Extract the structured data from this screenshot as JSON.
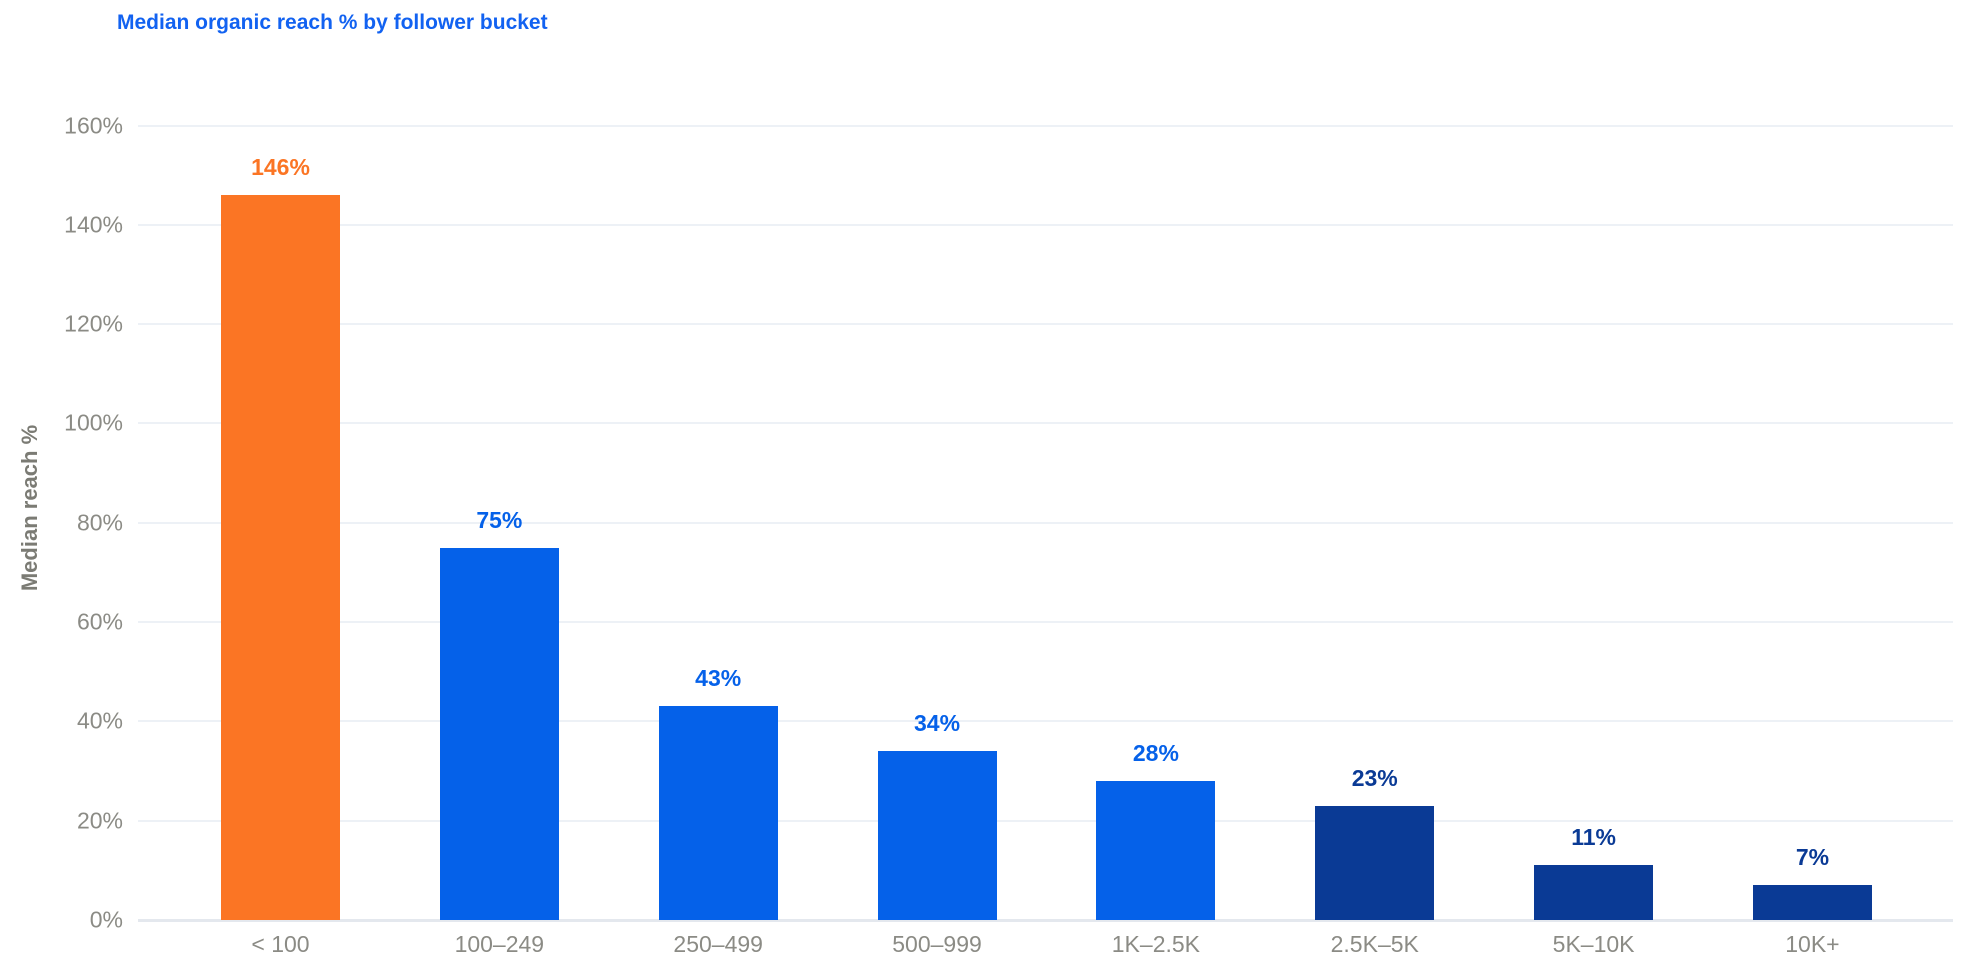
{
  "chart_data": {
    "type": "bar",
    "title": "Median organic reach % by follower bucket",
    "xlabel": "",
    "ylabel": "Median reach %",
    "categories": [
      "< 100",
      "100–249",
      "250–499",
      "500–999",
      "1K–2.5K",
      "2.5K–5K",
      "5K–10K",
      "10K+"
    ],
    "values": [
      146,
      75,
      43,
      34,
      28,
      23,
      11,
      7
    ],
    "value_labels": [
      "146%",
      "75%",
      "43%",
      "34%",
      "28%",
      "23%",
      "11%",
      "7%"
    ],
    "bar_colors": [
      "#FB7524",
      "#0561E9",
      "#0561E9",
      "#0561E9",
      "#0561E9",
      "#0A3A95",
      "#0A3A95",
      "#0A3A95"
    ],
    "label_colors": [
      "#FB7524",
      "#0561E9",
      "#0561E9",
      "#0561E9",
      "#0561E9",
      "#0A3A95",
      "#0A3A95",
      "#0A3A95"
    ],
    "y_ticks": [
      "0%",
      "20%",
      "40%",
      "60%",
      "80%",
      "100%",
      "120%",
      "140%",
      "160%"
    ],
    "ylim": [
      0,
      160
    ],
    "y_tick_step": 20,
    "grid": "horizontal",
    "legend": "none",
    "colors": {
      "highlight_orange": "#FB7524",
      "primary_blue": "#0561E9",
      "dark_navy": "#0A3A95",
      "title_blue": "#1262F1",
      "axis_text_gray": "#8B8B85",
      "y_axis_title_gray": "#7B7B74",
      "gridline": "#EDF1F6",
      "axis_line": "#E4E8EE",
      "background": "#FFFFFF"
    }
  }
}
